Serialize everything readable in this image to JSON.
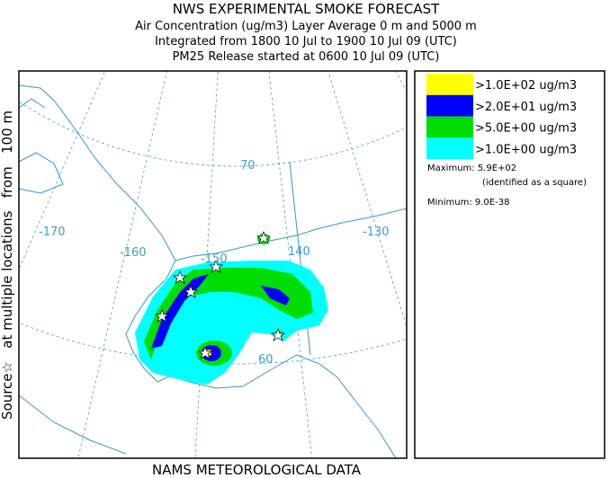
{
  "header": {
    "title": "NWS EXPERIMENTAL SMOKE FORECAST",
    "lines": [
      "Air Concentration (ug/m3) Layer Average    0 m and  5000 m",
      "Integrated from 1800 10 Jul to 1900 10 Jul 09 (UTC)",
      "PM25 Release started at 0600 10 Jul 09 (UTC)"
    ]
  },
  "side_label": "Source☆   at multiple locations   from   100 m",
  "footer": "NAMS METEOROLOGICAL DATA",
  "legend": {
    "entries": [
      {
        "label": ">1.0E+02 ug/m3",
        "color": "#ffff00"
      },
      {
        "label": ">2.0E+01 ug/m3",
        "color": "#0000ff"
      },
      {
        "label": ">5.0E+00 ug/m3",
        "color": "#00dd00"
      },
      {
        "label": ">1.0E+00 ug/m3",
        "color": "#00ffff"
      }
    ],
    "maximum": "Maximum: 5.9E+02",
    "max_note": "(identified as a square)",
    "minimum": "Minimum: 9.0E-38"
  },
  "map": {
    "labels": [
      "-170",
      "-160",
      "-150",
      "140",
      "-130",
      "70",
      "60"
    ]
  }
}
